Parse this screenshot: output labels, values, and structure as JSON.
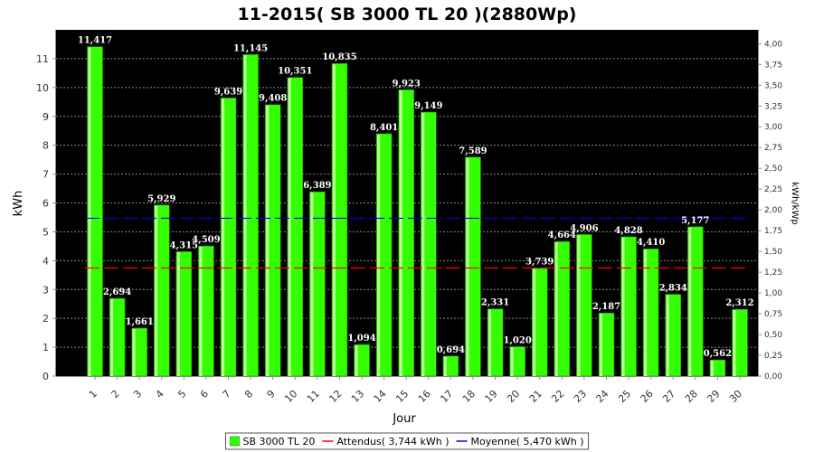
{
  "chart_data": {
    "type": "bar",
    "title": "11-2015( SB 3000 TL 20 )(2880Wp)",
    "xlabel": "Jour",
    "ylabel": "kWh",
    "ylabel_right": "kWh/kWp",
    "categories": [
      "1",
      "2",
      "3",
      "4",
      "5",
      "6",
      "7",
      "8",
      "9",
      "10",
      "11",
      "12",
      "13",
      "14",
      "15",
      "16",
      "17",
      "18",
      "19",
      "20",
      "21",
      "22",
      "23",
      "24",
      "25",
      "26",
      "27",
      "28",
      "29",
      "30"
    ],
    "series": [
      {
        "name": "SB 3000 TL 20",
        "values": [
          11.417,
          2.694,
          1.661,
          5.929,
          4.315,
          4.509,
          9.639,
          11.145,
          9.408,
          10.351,
          6.389,
          10.835,
          1.094,
          8.401,
          9.923,
          9.149,
          0.694,
          7.589,
          2.331,
          1.02,
          3.739,
          4.664,
          4.906,
          2.187,
          4.828,
          4.41,
          2.834,
          5.177,
          0.562,
          2.312
        ],
        "labels": [
          "11,417",
          "2,694",
          "1,661",
          "5,929",
          "4,315",
          "4,509",
          "9,639",
          "11,145",
          "9,408",
          "10,351",
          "6,389",
          "10,835",
          "1,094",
          "8,401",
          "9,923",
          "9,149",
          "0,694",
          "7,589",
          "2,331",
          "1,020",
          "3,739",
          "4,664",
          "4,906",
          "2,187",
          "4,828",
          "4,410",
          "2,834",
          "5,177",
          "0,562",
          "2,312"
        ],
        "color": "#33ff00"
      }
    ],
    "reference_lines": [
      {
        "name": "Attendus",
        "value": 3.744,
        "color": "#ff0000",
        "label": "Attendus( 3,744 kWh )"
      },
      {
        "name": "Moyenne",
        "value": 5.47,
        "color": "#0000ff",
        "label": "Moyenne( 5,470 kWh )"
      }
    ],
    "ylim": [
      0,
      12
    ],
    "yticks": [
      0,
      1,
      2,
      3,
      4,
      5,
      6,
      7,
      8,
      9,
      10,
      11
    ],
    "ylim_right": [
      0,
      4.1667
    ],
    "yticks_right": [
      "0,00",
      "0,25",
      "0,50",
      "0,75",
      "1,00",
      "1,25",
      "1,50",
      "1,75",
      "2,00",
      "2,25",
      "2,50",
      "2,75",
      "3,00",
      "3,25",
      "3,50",
      "3,75",
      "4,00"
    ],
    "grid": true,
    "legend_position": "bottom",
    "colors": {
      "plot_background": "#000000",
      "bar": "#33ff00",
      "bar_highlight": "#ccffaa",
      "grid": "#888888"
    }
  }
}
